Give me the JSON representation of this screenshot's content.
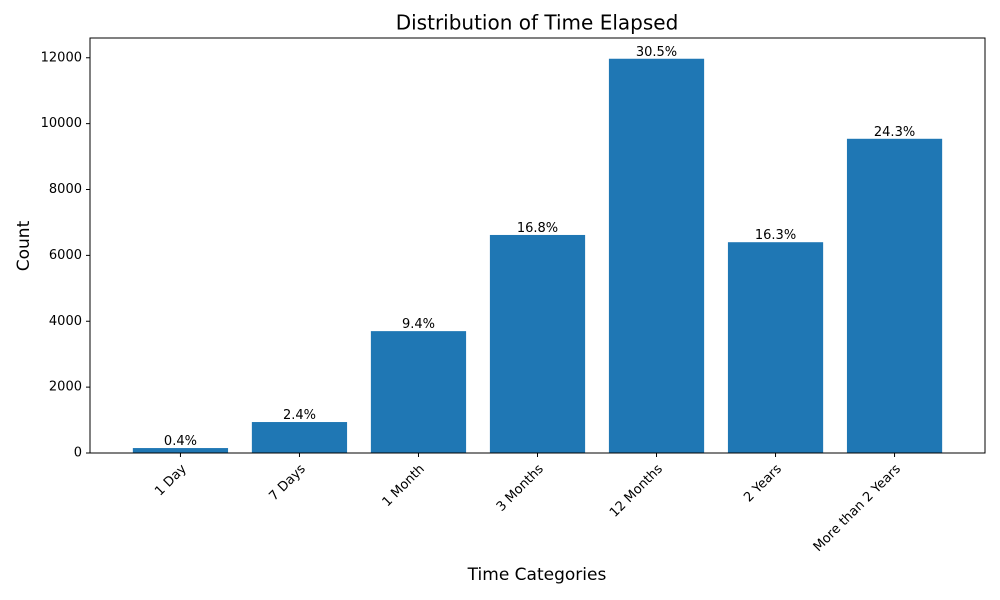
{
  "chart_data": {
    "type": "bar",
    "title": "Distribution of Time Elapsed",
    "x_label": "Time Categories",
    "y_label": "Count",
    "categories": [
      "1 Day",
      "7 Days",
      "1 Month",
      "3 Months",
      "12 Months",
      "2 Years",
      "More than 2 Years"
    ],
    "values": [
      150,
      940,
      3700,
      6620,
      11970,
      6400,
      9540
    ],
    "share_labels": [
      "0.4%",
      "2.4%",
      "9.4%",
      "16.8%",
      "30.5%",
      "16.3%",
      "24.3%"
    ],
    "color": "#1f77b4",
    "ylim": [
      0,
      12600
    ],
    "yticks": [
      0,
      2000,
      4000,
      6000,
      8000,
      10000,
      12000
    ]
  }
}
